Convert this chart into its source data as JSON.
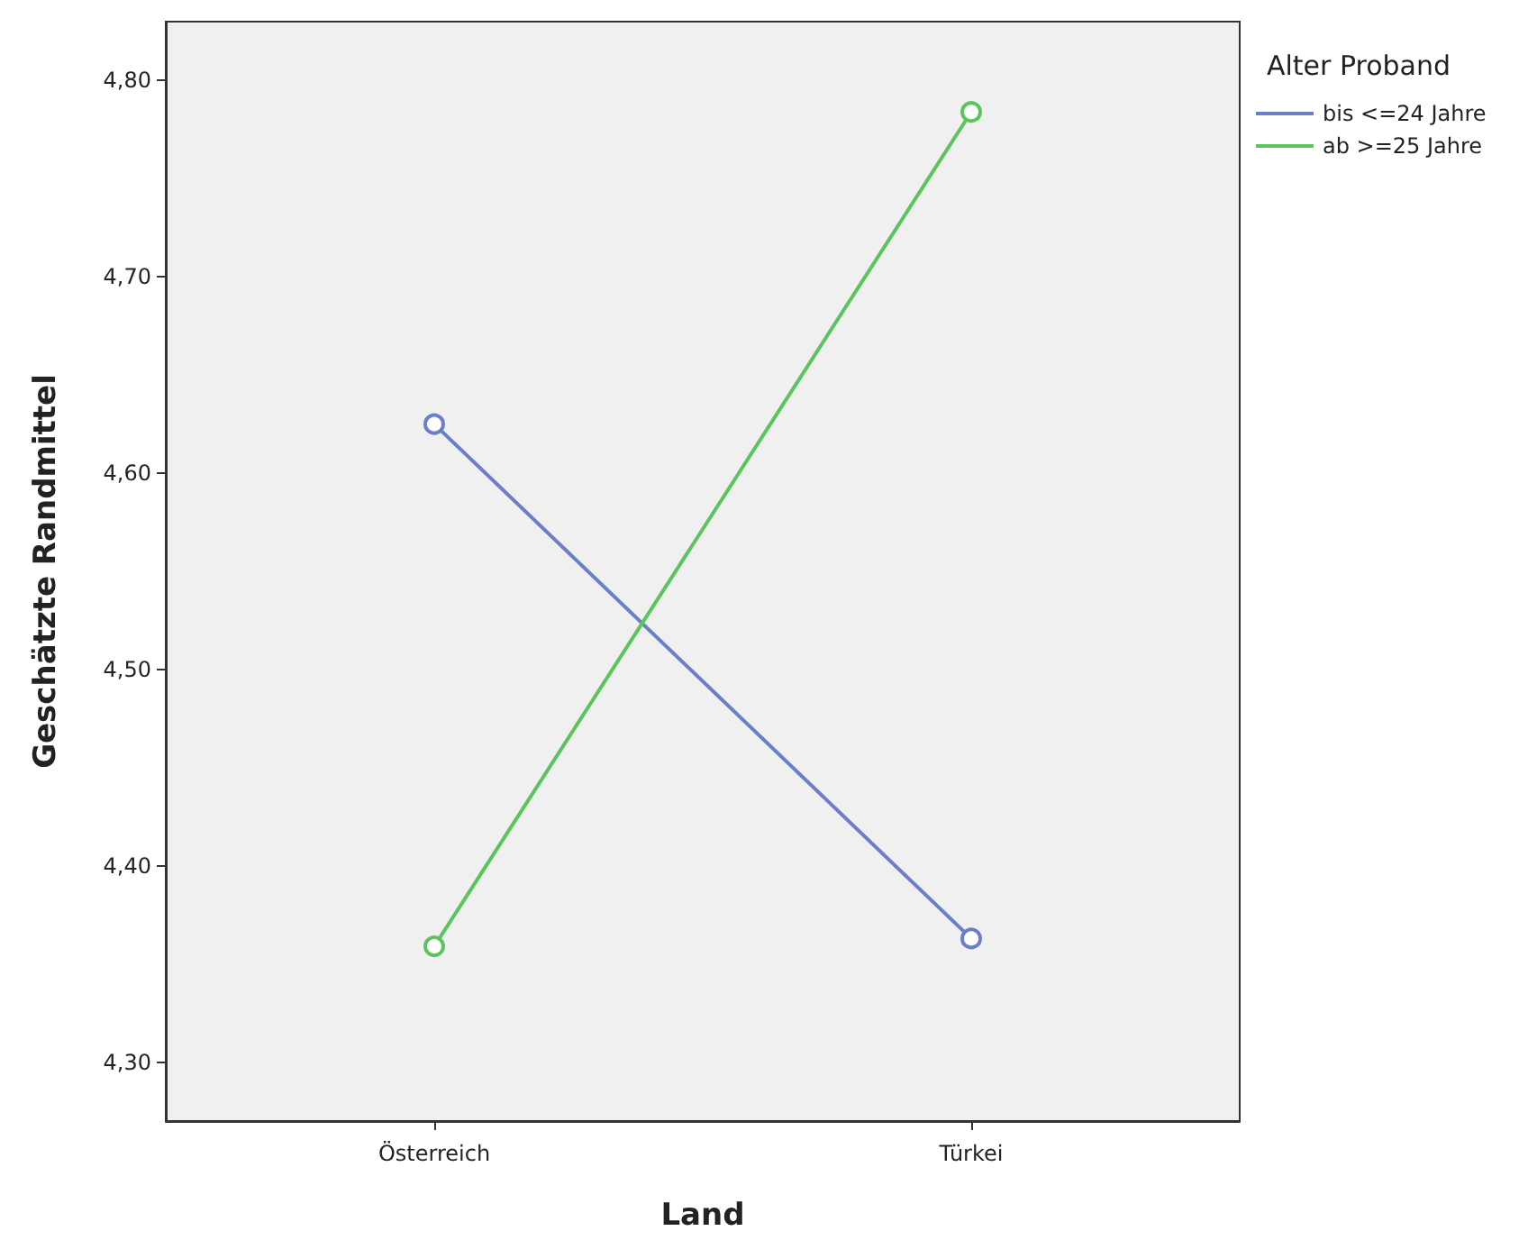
{
  "chart_data": {
    "type": "line",
    "xlabel": "Land",
    "ylabel": "Geschätzte Randmittel",
    "legend_title": "Alter Proband",
    "categories": [
      "Österreich",
      "Türkei"
    ],
    "series": [
      {
        "name": "bis <=24 Jahre",
        "color": "#6a7fc8",
        "values": [
          4.625,
          4.363
        ]
      },
      {
        "name": "ab >=25 Jahre",
        "color": "#5cc45c",
        "values": [
          4.359,
          4.784
        ]
      }
    ],
    "ylim": [
      4.27,
      4.83
    ],
    "yticks": [
      {
        "value": 4.3,
        "label": "4,30"
      },
      {
        "value": 4.4,
        "label": "4,40"
      },
      {
        "value": 4.5,
        "label": "4,50"
      },
      {
        "value": 4.6,
        "label": "4,60"
      },
      {
        "value": 4.7,
        "label": "4,70"
      },
      {
        "value": 4.8,
        "label": "4,80"
      }
    ],
    "grid": false,
    "legend": "top right",
    "marker": "circle",
    "line_style": "solid"
  }
}
